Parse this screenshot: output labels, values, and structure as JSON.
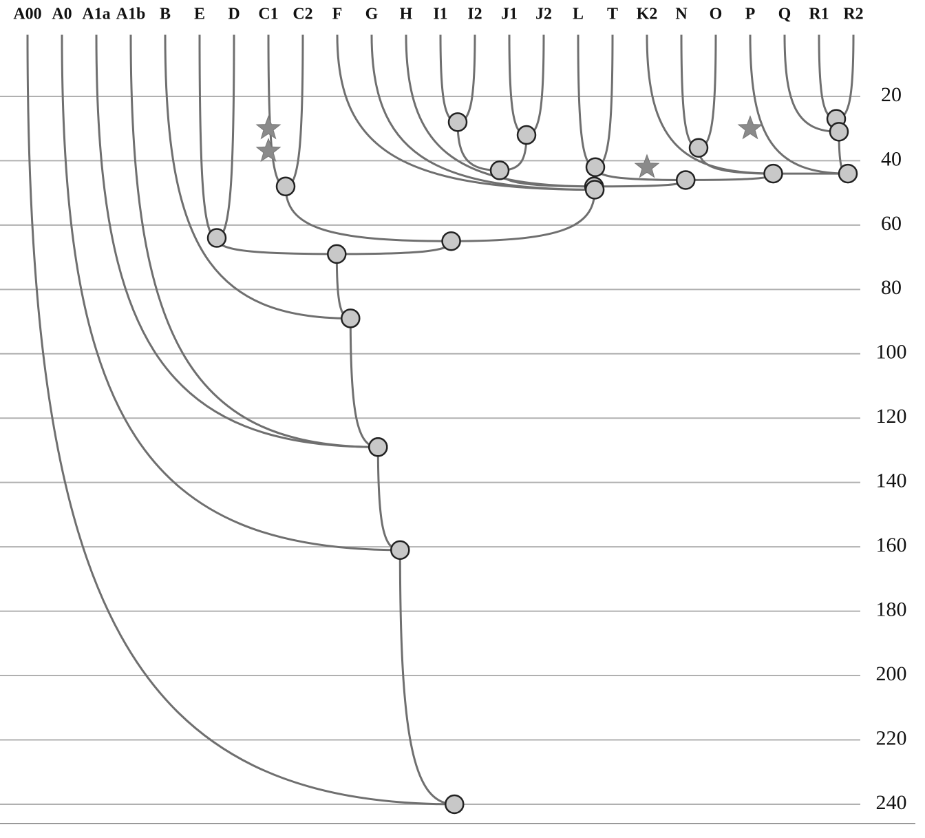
{
  "chart_data": {
    "type": "tree",
    "leaves": [
      "A00",
      "A0",
      "A1a",
      "A1b",
      "B",
      "E",
      "D",
      "C1",
      "C2",
      "F",
      "G",
      "H",
      "I1",
      "I2",
      "J1",
      "J2",
      "L",
      "T",
      "K2",
      "N",
      "O",
      "P",
      "Q",
      "R1",
      "R2"
    ],
    "nodes": [
      {
        "value": 28,
        "leaves": [
          12,
          13
        ]
      },
      {
        "value": 32,
        "leaves": [
          14,
          15
        ]
      },
      {
        "value": 43,
        "nodes": [
          0,
          1
        ]
      },
      {
        "value": 42,
        "leaves": [
          16,
          17
        ]
      },
      {
        "value": 36,
        "leaves": [
          19,
          20
        ]
      },
      {
        "value": 27,
        "leaves": [
          23,
          24
        ]
      },
      {
        "value": 31,
        "leaves": [
          22
        ],
        "nodes": [
          5
        ]
      },
      {
        "value": 44,
        "leaves": [
          21
        ],
        "nodes": [
          6
        ]
      },
      {
        "value": 44,
        "leaves": [
          18
        ],
        "nodes": [
          4,
          7
        ]
      },
      {
        "value": 46,
        "nodes": [
          3,
          8
        ]
      },
      {
        "value": 48,
        "nodes": [
          2,
          9
        ]
      },
      {
        "value": 48,
        "leaves": [
          11
        ],
        "nodes": [
          10
        ]
      },
      {
        "value": 49,
        "leaves": [
          9,
          10
        ],
        "nodes": [
          11
        ]
      },
      {
        "value": 48,
        "leaves": [
          7,
          8
        ]
      },
      {
        "value": 65,
        "nodes": [
          13,
          12
        ]
      },
      {
        "value": 64,
        "leaves": [
          5,
          6
        ]
      },
      {
        "value": 69,
        "nodes": [
          15,
          14
        ]
      },
      {
        "value": 89,
        "leaves": [
          4
        ],
        "nodes": [
          16
        ]
      },
      {
        "value": 129,
        "leaves": [
          3
        ],
        "nodes": [
          17
        ]
      },
      {
        "value": 129,
        "leaves": [
          2
        ],
        "nodes": [
          18
        ]
      },
      {
        "value": 161,
        "leaves": [
          1
        ],
        "nodes": [
          19
        ]
      },
      {
        "value": 240,
        "leaves": [
          0
        ],
        "nodes": [
          20
        ]
      }
    ],
    "stars": [
      {
        "leaf": 7,
        "value": 30
      },
      {
        "leaf": 7,
        "value": 37
      },
      {
        "leaf": 18,
        "value": 42
      },
      {
        "leaf": 21,
        "value": 30
      }
    ],
    "ylim": [
      0,
      246
    ],
    "yticks": [
      20,
      40,
      60,
      80,
      100,
      120,
      140,
      160,
      180,
      200,
      220,
      240
    ],
    "grid": true,
    "color": "#6f6f6f"
  }
}
